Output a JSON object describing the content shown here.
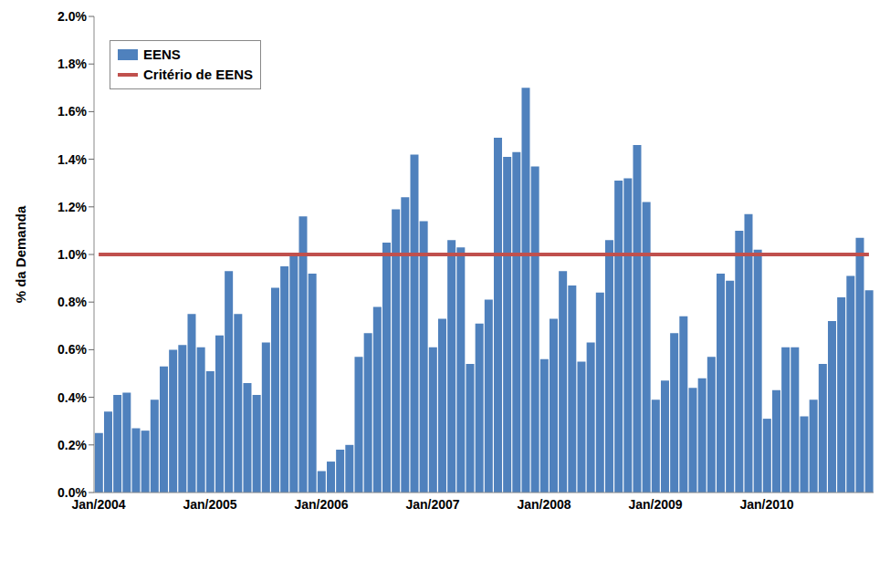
{
  "chart_data": {
    "type": "bar",
    "y_label": "% da Demanda",
    "categories": [
      "Jan/2004",
      null,
      null,
      null,
      null,
      null,
      null,
      null,
      null,
      null,
      null,
      null,
      "Jan/2005",
      null,
      null,
      null,
      null,
      null,
      null,
      null,
      null,
      null,
      null,
      null,
      "Jan/2006",
      null,
      null,
      null,
      null,
      null,
      null,
      null,
      null,
      null,
      null,
      null,
      "Jan/2007",
      null,
      null,
      null,
      null,
      null,
      null,
      null,
      null,
      null,
      null,
      null,
      "Jan/2008",
      null,
      null,
      null,
      null,
      null,
      null,
      null,
      null,
      null,
      null,
      null,
      "Jan/2009",
      null,
      null,
      null,
      null,
      null,
      null,
      null,
      null,
      null,
      null,
      null,
      "Jan/2010",
      null,
      null,
      null,
      null,
      null,
      null,
      null,
      null,
      null,
      null,
      null
    ],
    "series": [
      {
        "name": "EENS",
        "type": "bar",
        "color": "#4F81BD",
        "values": [
          0.25,
          0.34,
          0.41,
          0.42,
          0.27,
          0.26,
          0.39,
          0.53,
          0.6,
          0.62,
          0.75,
          0.61,
          0.51,
          0.66,
          0.93,
          0.75,
          0.46,
          0.41,
          0.63,
          0.86,
          0.95,
          1.0,
          1.16,
          0.92,
          0.09,
          0.13,
          0.18,
          0.2,
          0.57,
          0.67,
          0.78,
          1.05,
          1.19,
          1.24,
          1.42,
          1.14,
          0.61,
          0.73,
          1.06,
          1.03,
          0.54,
          0.71,
          0.81,
          1.49,
          1.41,
          1.43,
          1.7,
          1.37,
          0.56,
          0.73,
          0.93,
          0.87,
          0.55,
          0.63,
          0.84,
          1.06,
          1.31,
          1.32,
          1.46,
          1.22,
          0.39,
          0.47,
          0.67,
          0.74,
          0.44,
          0.48,
          0.57,
          0.92,
          0.89,
          1.1,
          1.17,
          1.02,
          0.31,
          0.43,
          0.61,
          0.61,
          0.32,
          0.39,
          0.54,
          0.72,
          0.82,
          0.91,
          1.07,
          0.85
        ]
      },
      {
        "name": "Critério de EENS",
        "type": "line",
        "color": "#C0504D",
        "values": [
          1.0,
          1.0,
          1.0,
          1.0,
          1.0,
          1.0,
          1.0,
          1.0,
          1.0,
          1.0,
          1.0,
          1.0,
          1.0,
          1.0,
          1.0,
          1.0,
          1.0,
          1.0,
          1.0,
          1.0,
          1.0,
          1.0,
          1.0,
          1.0,
          1.0,
          1.0,
          1.0,
          1.0,
          1.0,
          1.0,
          1.0,
          1.0,
          1.0,
          1.0,
          1.0,
          1.0,
          1.0,
          1.0,
          1.0,
          1.0,
          1.0,
          1.0,
          1.0,
          1.0,
          1.0,
          1.0,
          1.0,
          1.0,
          1.0,
          1.0,
          1.0,
          1.0,
          1.0,
          1.0,
          1.0,
          1.0,
          1.0,
          1.0,
          1.0,
          1.0,
          1.0,
          1.0,
          1.0,
          1.0,
          1.0,
          1.0,
          1.0,
          1.0,
          1.0,
          1.0,
          1.0,
          1.0,
          1.0,
          1.0,
          1.0,
          1.0,
          1.0,
          1.0,
          1.0,
          1.0,
          1.0,
          1.0,
          1.0,
          1.0
        ]
      }
    ],
    "ylim": [
      0,
      2
    ],
    "yticks": [
      {
        "value": 0,
        "label": "0.0%"
      },
      {
        "value": 0.2,
        "label": "0.2%"
      },
      {
        "value": 0.4,
        "label": "0.4%"
      },
      {
        "value": 0.6,
        "label": "0.6%"
      },
      {
        "value": 0.8,
        "label": "0.8%"
      },
      {
        "value": 1.0,
        "label": "1.0%"
      },
      {
        "value": 1.2,
        "label": "1.2%"
      },
      {
        "value": 1.4,
        "label": "1.4%"
      },
      {
        "value": 1.6,
        "label": "1.6%"
      },
      {
        "value": 1.8,
        "label": "1.8%"
      },
      {
        "value": 2.0,
        "label": "2.0%"
      }
    ],
    "grid": false,
    "legend": "upper left"
  }
}
